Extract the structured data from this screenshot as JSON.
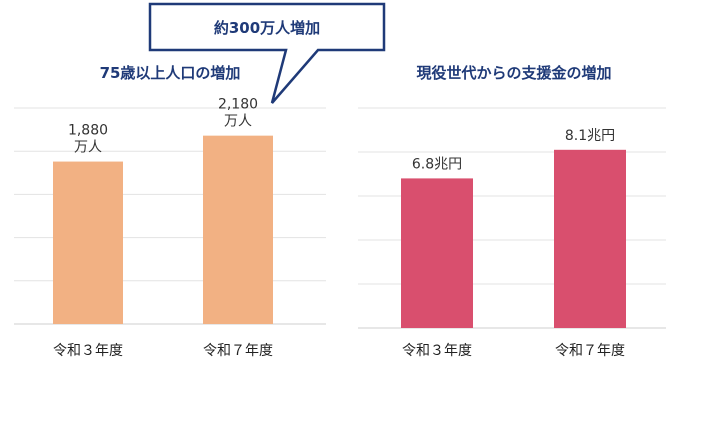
{
  "callout": {
    "text": "約300万人増加"
  },
  "chart_data": [
    {
      "type": "bar",
      "title": "75歳以上人口の増加",
      "categories": [
        "令和３年度",
        "令和７年度"
      ],
      "values": [
        1880,
        2180
      ],
      "value_labels": [
        [
          "1,880",
          "万人"
        ],
        [
          "2,180",
          "万人"
        ]
      ],
      "unit": "万人",
      "ylim": [
        0,
        2500
      ],
      "grid": true,
      "color": "#f2b183"
    },
    {
      "type": "bar",
      "title": "現役世代からの支援金の増加",
      "categories": [
        "令和３年度",
        "令和７年度"
      ],
      "values": [
        6.8,
        8.1
      ],
      "value_labels": [
        [
          "6.8兆円"
        ],
        [
          "8.1兆円"
        ]
      ],
      "unit": "兆円",
      "ylim": [
        0,
        10
      ],
      "grid": true,
      "color": "#d94f6e"
    }
  ]
}
